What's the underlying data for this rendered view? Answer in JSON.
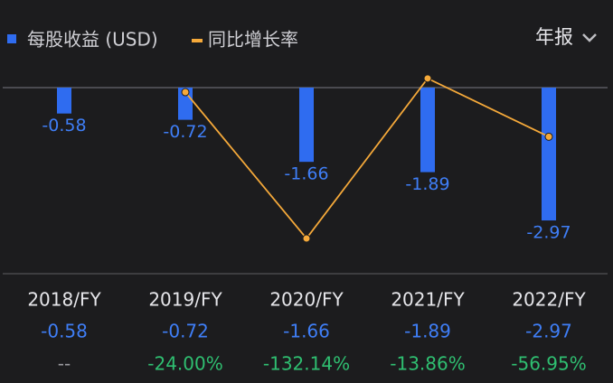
{
  "chart_data": {
    "type": "bar",
    "period_selector": "年报",
    "categories": [
      "2018/FY",
      "2019/FY",
      "2020/FY",
      "2021/FY",
      "2022/FY"
    ],
    "series": [
      {
        "name": "每股收益 (USD)",
        "color": "#2f6cf0",
        "values": [
          -0.58,
          -0.72,
          -1.66,
          -1.89,
          -2.97
        ]
      },
      {
        "name": "同比增长率",
        "color": "#f5a93a",
        "type": "line",
        "axis": "y2",
        "values": [
          null,
          -24.0,
          -132.14,
          -13.86,
          -56.95
        ],
        "value_labels": [
          "--",
          "-24.00%",
          "-132.14%",
          "-13.86%",
          "-56.95%"
        ]
      }
    ],
    "ylim": [
      -4.16,
      1.15
    ],
    "y2lim": [
      -158.2,
      17.4
    ]
  }
}
